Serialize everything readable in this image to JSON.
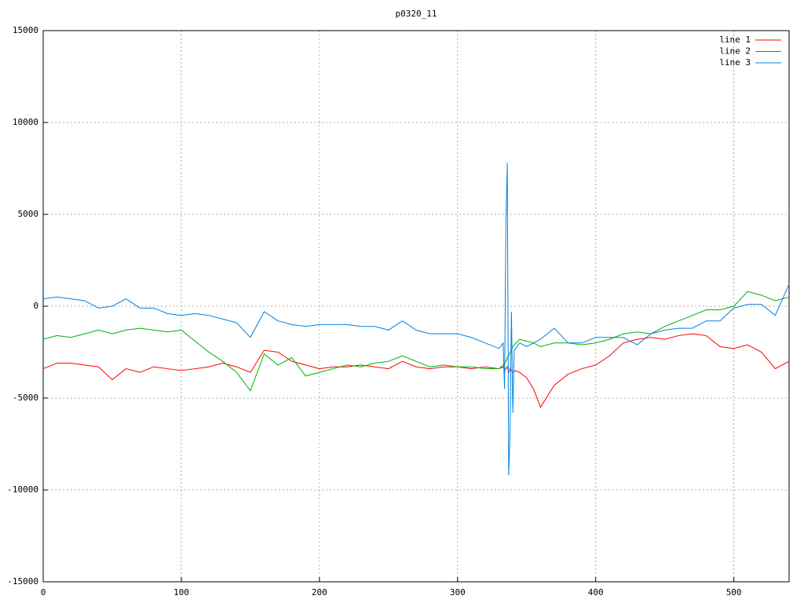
{
  "chart_data": {
    "type": "line",
    "title": "p0320_11",
    "x": [
      0,
      10,
      20,
      30,
      40,
      50,
      60,
      70,
      80,
      90,
      100,
      110,
      120,
      130,
      140,
      150,
      160,
      170,
      180,
      190,
      200,
      210,
      220,
      230,
      240,
      250,
      260,
      270,
      280,
      290,
      300,
      310,
      320,
      330,
      333,
      334,
      335,
      336,
      337,
      338,
      339,
      340,
      341,
      345,
      350,
      355,
      360,
      370,
      380,
      390,
      400,
      410,
      420,
      430,
      440,
      450,
      460,
      470,
      480,
      490,
      500,
      510,
      520,
      530,
      540
    ],
    "series": [
      {
        "name": "line 1",
        "color": "#ff0000",
        "values": [
          -3400,
          -3100,
          -3100,
          -3200,
          -3300,
          -4000,
          -3400,
          -3600,
          -3300,
          -3400,
          -3500,
          -3400,
          -3300,
          -3100,
          -3300,
          -3600,
          -2400,
          -2500,
          -3000,
          -3200,
          -3400,
          -3300,
          -3300,
          -3200,
          -3300,
          -3400,
          -3000,
          -3300,
          -3400,
          -3300,
          -3300,
          -3400,
          -3300,
          -3400,
          -3300,
          -3500,
          -3400,
          -3300,
          -3600,
          -3400,
          -3500,
          -3600,
          -3500,
          -3600,
          -3900,
          -4500,
          -5500,
          -4300,
          -3700,
          -3400,
          -3200,
          -2700,
          -2000,
          -1800,
          -1700,
          -1800,
          -1600,
          -1500,
          -1600,
          -2200,
          -2300,
          -2100,
          -2500,
          -3400,
          -3000
        ]
      },
      {
        "name": "line 2",
        "color": "#00b000",
        "values": [
          -1800,
          -1600,
          -1700,
          -1500,
          -1300,
          -1500,
          -1300,
          -1200,
          -1300,
          -1400,
          -1300,
          -1900,
          -2500,
          -3000,
          -3600,
          -4600,
          -2600,
          -3200,
          -2800,
          -3800,
          -3600,
          -3400,
          -3200,
          -3300,
          -3100,
          -3000,
          -2700,
          -3000,
          -3300,
          -3200,
          -3300,
          -3300,
          -3400,
          -3400,
          -3200,
          -3100,
          -3000,
          -2800,
          -2700,
          -2500,
          -2400,
          -2200,
          -2100,
          -1800,
          -1900,
          -2000,
          -2200,
          -2000,
          -2000,
          -2100,
          -2000,
          -1800,
          -1500,
          -1400,
          -1500,
          -1100,
          -800,
          -500,
          -200,
          -200,
          0,
          800,
          600,
          300,
          500
        ]
      },
      {
        "name": "line 3",
        "color": "#0080e0",
        "values": [
          400,
          500,
          400,
          300,
          -100,
          0,
          400,
          -100,
          -100,
          -400,
          -500,
          -400,
          -500,
          -700,
          -900,
          -1700,
          -300,
          -800,
          -1000,
          -1100,
          -1000,
          -1000,
          -1000,
          -1100,
          -1100,
          -1300,
          -800,
          -1300,
          -1500,
          -1500,
          -1500,
          -1700,
          -2000,
          -2300,
          -2000,
          -4500,
          4600,
          7800,
          -9200,
          -6800,
          -300,
          -5800,
          -2400,
          -2000,
          -2200,
          -2000,
          -1800,
          -1200,
          -2000,
          -2000,
          -1700,
          -1700,
          -1700,
          -2100,
          -1500,
          -1300,
          -1200,
          -1200,
          -800,
          -800,
          -100,
          100,
          100,
          -500,
          1200
        ]
      }
    ],
    "xlim": [
      0,
      540
    ],
    "xticks": [
      0,
      100,
      200,
      300,
      400,
      500
    ],
    "ylim": [
      -15000,
      15000
    ],
    "yticks": [
      -15000,
      -10000,
      -5000,
      0,
      5000,
      10000,
      15000
    ],
    "grid": true,
    "legend": "top-right"
  }
}
